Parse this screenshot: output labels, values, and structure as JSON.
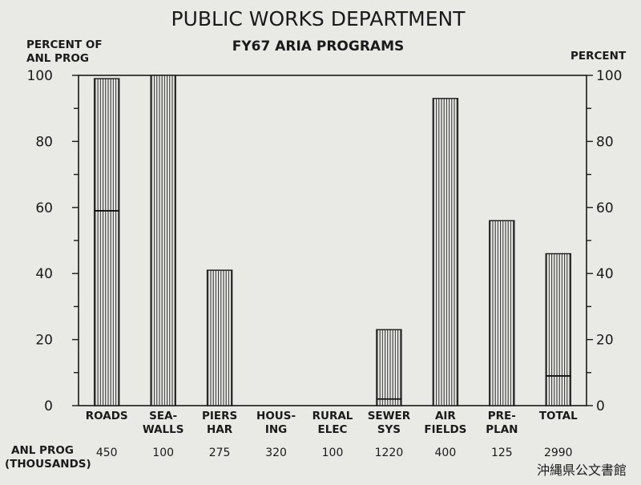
{
  "chart_data": {
    "type": "bar",
    "title": "PUBLIC WORKS DEPARTMENT",
    "subtitle": "FY67 ARIA PROGRAMS",
    "ylabel_left": [
      "PERCENT OF",
      "ANL PROG"
    ],
    "ylabel_right": "PERCENT",
    "ylim": [
      0,
      100
    ],
    "yticks": [
      0,
      20,
      40,
      60,
      80,
      100
    ],
    "categories": [
      [
        "ROADS"
      ],
      [
        "SEA-",
        "WALLS"
      ],
      [
        "PIERS",
        "HAR"
      ],
      [
        "HOUS-",
        "ING"
      ],
      [
        "RURAL",
        "ELEC"
      ],
      [
        "SEWER",
        "SYS"
      ],
      [
        "AIR",
        "FIELDS"
      ],
      [
        "PRE-",
        "PLAN"
      ],
      [
        "TOTAL"
      ]
    ],
    "values": [
      99,
      100,
      41,
      0,
      0,
      23,
      93,
      56,
      46
    ],
    "inner_marks": [
      59,
      null,
      null,
      null,
      null,
      2,
      null,
      null,
      9
    ],
    "row_label": [
      "ANL PROG",
      "(THOUSANDS)"
    ],
    "anl_prog": [
      "450",
      "100",
      "275",
      "320",
      "100",
      "1220",
      "400",
      "125",
      "2990"
    ]
  },
  "archive_stamp": "沖縄県公文書館"
}
